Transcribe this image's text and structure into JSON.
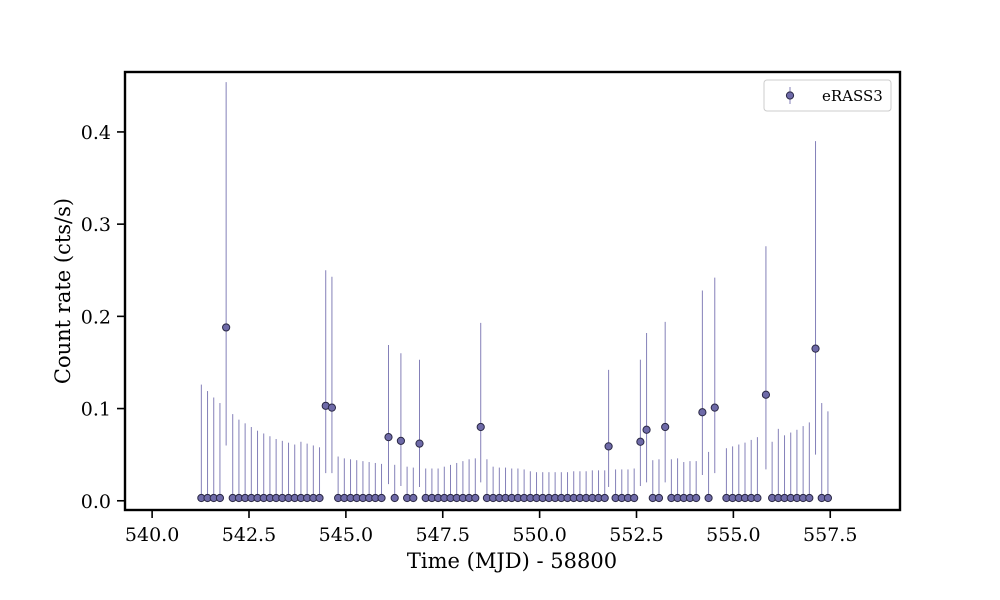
{
  "chart_data": {
    "type": "scatter",
    "title": "",
    "xlabel": "Time (MJD) - 58800",
    "ylabel": "Count rate (cts/s)",
    "xlim": [
      539.3,
      559.3
    ],
    "ylim": [
      -0.01,
      0.465
    ],
    "xticks": [
      540.0,
      542.5,
      545.0,
      547.5,
      550.0,
      552.5,
      555.0,
      557.5
    ],
    "xtick_labels": [
      "540.0",
      "542.5",
      "545.0",
      "547.5",
      "550.0",
      "552.5",
      "555.0",
      "557.5"
    ],
    "yticks": [
      0.0,
      0.1,
      0.2,
      0.3,
      0.4
    ],
    "ytick_labels": [
      "0.0",
      "0.1",
      "0.2",
      "0.3",
      "0.4"
    ],
    "grid": false,
    "legend": {
      "placement": "top-right",
      "entries": [
        "eRASS3"
      ]
    },
    "colors": {
      "marker_fill": "#6e6aa8",
      "marker_edge": "#2a2845",
      "errorbar": "#8480b8"
    },
    "series": [
      {
        "name": "eRASS3",
        "points": [
          {
            "x": 541.27,
            "y": 0.003,
            "yerr_up": 0.126
          },
          {
            "x": 541.43,
            "y": 0.003,
            "yerr_up": 0.119
          },
          {
            "x": 541.59,
            "y": 0.003,
            "yerr_up": 0.112
          },
          {
            "x": 541.75,
            "y": 0.003,
            "yerr_up": 0.106
          },
          {
            "x": 541.91,
            "y": 0.188,
            "yerr_up": 0.454,
            "yerr_low": 0.06
          },
          {
            "x": 542.08,
            "y": 0.003,
            "yerr_up": 0.094
          },
          {
            "x": 542.24,
            "y": 0.003,
            "yerr_up": 0.088
          },
          {
            "x": 542.4,
            "y": 0.003,
            "yerr_up": 0.084
          },
          {
            "x": 542.56,
            "y": 0.003,
            "yerr_up": 0.08
          },
          {
            "x": 542.72,
            "y": 0.003,
            "yerr_up": 0.076
          },
          {
            "x": 542.88,
            "y": 0.003,
            "yerr_up": 0.073
          },
          {
            "x": 543.04,
            "y": 0.003,
            "yerr_up": 0.07
          },
          {
            "x": 543.2,
            "y": 0.003,
            "yerr_up": 0.067
          },
          {
            "x": 543.36,
            "y": 0.003,
            "yerr_up": 0.065
          },
          {
            "x": 543.52,
            "y": 0.003,
            "yerr_up": 0.063
          },
          {
            "x": 543.68,
            "y": 0.003,
            "yerr_up": 0.061
          },
          {
            "x": 543.84,
            "y": 0.003,
            "yerr_up": 0.064
          },
          {
            "x": 544.0,
            "y": 0.003,
            "yerr_up": 0.062
          },
          {
            "x": 544.16,
            "y": 0.003,
            "yerr_up": 0.06
          },
          {
            "x": 544.32,
            "y": 0.003,
            "yerr_up": 0.058
          },
          {
            "x": 544.48,
            "y": 0.103,
            "yerr_up": 0.25,
            "yerr_low": 0.03
          },
          {
            "x": 544.64,
            "y": 0.101,
            "yerr_up": 0.243,
            "yerr_low": 0.03
          },
          {
            "x": 544.8,
            "y": 0.003,
            "yerr_up": 0.048
          },
          {
            "x": 544.96,
            "y": 0.003,
            "yerr_up": 0.046
          },
          {
            "x": 545.12,
            "y": 0.003,
            "yerr_up": 0.045
          },
          {
            "x": 545.28,
            "y": 0.003,
            "yerr_up": 0.044
          },
          {
            "x": 545.44,
            "y": 0.003,
            "yerr_up": 0.043
          },
          {
            "x": 545.6,
            "y": 0.003,
            "yerr_up": 0.042
          },
          {
            "x": 545.76,
            "y": 0.003,
            "yerr_up": 0.041
          },
          {
            "x": 545.92,
            "y": 0.003,
            "yerr_up": 0.04
          },
          {
            "x": 546.1,
            "y": 0.069,
            "yerr_up": 0.169,
            "yerr_low": 0.018
          },
          {
            "x": 546.26,
            "y": 0.003,
            "yerr_up": 0.039
          },
          {
            "x": 546.42,
            "y": 0.065,
            "yerr_up": 0.16,
            "yerr_low": 0.016
          },
          {
            "x": 546.58,
            "y": 0.003,
            "yerr_up": 0.037
          },
          {
            "x": 546.74,
            "y": 0.003,
            "yerr_up": 0.036
          },
          {
            "x": 546.9,
            "y": 0.062,
            "yerr_up": 0.153,
            "yerr_low": 0.015
          },
          {
            "x": 547.06,
            "y": 0.003,
            "yerr_up": 0.035
          },
          {
            "x": 547.22,
            "y": 0.003,
            "yerr_up": 0.035
          },
          {
            "x": 547.38,
            "y": 0.003,
            "yerr_up": 0.035
          },
          {
            "x": 547.54,
            "y": 0.003,
            "yerr_up": 0.037
          },
          {
            "x": 547.7,
            "y": 0.003,
            "yerr_up": 0.039
          },
          {
            "x": 547.86,
            "y": 0.003,
            "yerr_up": 0.041
          },
          {
            "x": 548.02,
            "y": 0.003,
            "yerr_up": 0.043
          },
          {
            "x": 548.18,
            "y": 0.003,
            "yerr_up": 0.045
          },
          {
            "x": 548.34,
            "y": 0.003,
            "yerr_up": 0.046
          },
          {
            "x": 548.48,
            "y": 0.08,
            "yerr_up": 0.193,
            "yerr_low": 0.02
          },
          {
            "x": 548.64,
            "y": 0.003,
            "yerr_up": 0.045
          },
          {
            "x": 548.8,
            "y": 0.003,
            "yerr_up": 0.037
          },
          {
            "x": 548.96,
            "y": 0.003,
            "yerr_up": 0.036
          },
          {
            "x": 549.12,
            "y": 0.003,
            "yerr_up": 0.036
          },
          {
            "x": 549.28,
            "y": 0.003,
            "yerr_up": 0.035
          },
          {
            "x": 549.44,
            "y": 0.003,
            "yerr_up": 0.035
          },
          {
            "x": 549.6,
            "y": 0.003,
            "yerr_up": 0.034
          },
          {
            "x": 549.76,
            "y": 0.003,
            "yerr_up": 0.032
          },
          {
            "x": 549.92,
            "y": 0.003,
            "yerr_up": 0.031
          },
          {
            "x": 550.08,
            "y": 0.003,
            "yerr_up": 0.031
          },
          {
            "x": 550.24,
            "y": 0.003,
            "yerr_up": 0.031
          },
          {
            "x": 550.4,
            "y": 0.003,
            "yerr_up": 0.031
          },
          {
            "x": 550.56,
            "y": 0.003,
            "yerr_up": 0.031
          },
          {
            "x": 550.72,
            "y": 0.003,
            "yerr_up": 0.031
          },
          {
            "x": 550.88,
            "y": 0.003,
            "yerr_up": 0.032
          },
          {
            "x": 551.04,
            "y": 0.003,
            "yerr_up": 0.032
          },
          {
            "x": 551.2,
            "y": 0.003,
            "yerr_up": 0.032
          },
          {
            "x": 551.36,
            "y": 0.003,
            "yerr_up": 0.033
          },
          {
            "x": 551.52,
            "y": 0.003,
            "yerr_up": 0.033
          },
          {
            "x": 551.68,
            "y": 0.003,
            "yerr_up": 0.033
          },
          {
            "x": 551.78,
            "y": 0.059,
            "yerr_up": 0.142,
            "yerr_low": 0.015
          },
          {
            "x": 551.96,
            "y": 0.003,
            "yerr_up": 0.034
          },
          {
            "x": 552.12,
            "y": 0.003,
            "yerr_up": 0.034
          },
          {
            "x": 552.28,
            "y": 0.003,
            "yerr_up": 0.034
          },
          {
            "x": 552.44,
            "y": 0.003,
            "yerr_up": 0.035
          },
          {
            "x": 552.6,
            "y": 0.064,
            "yerr_up": 0.153,
            "yerr_low": 0.016
          },
          {
            "x": 552.76,
            "y": 0.077,
            "yerr_up": 0.182,
            "yerr_low": 0.02
          },
          {
            "x": 552.92,
            "y": 0.003,
            "yerr_up": 0.044
          },
          {
            "x": 553.08,
            "y": 0.003,
            "yerr_up": 0.045
          },
          {
            "x": 553.24,
            "y": 0.08,
            "yerr_up": 0.194,
            "yerr_low": 0.02
          },
          {
            "x": 553.4,
            "y": 0.003,
            "yerr_up": 0.045
          },
          {
            "x": 553.56,
            "y": 0.003,
            "yerr_up": 0.046
          },
          {
            "x": 553.72,
            "y": 0.003,
            "yerr_up": 0.042
          },
          {
            "x": 553.88,
            "y": 0.003,
            "yerr_up": 0.043
          },
          {
            "x": 554.04,
            "y": 0.003,
            "yerr_up": 0.043
          },
          {
            "x": 554.2,
            "y": 0.096,
            "yerr_up": 0.228,
            "yerr_low": 0.028
          },
          {
            "x": 554.36,
            "y": 0.003,
            "yerr_up": 0.053
          },
          {
            "x": 554.52,
            "y": 0.101,
            "yerr_up": 0.242,
            "yerr_low": 0.03
          },
          {
            "x": 554.82,
            "y": 0.003,
            "yerr_up": 0.057
          },
          {
            "x": 554.98,
            "y": 0.003,
            "yerr_up": 0.059
          },
          {
            "x": 555.14,
            "y": 0.003,
            "yerr_up": 0.061
          },
          {
            "x": 555.3,
            "y": 0.003,
            "yerr_up": 0.063
          },
          {
            "x": 555.46,
            "y": 0.003,
            "yerr_up": 0.066
          },
          {
            "x": 555.62,
            "y": 0.003,
            "yerr_up": 0.069
          },
          {
            "x": 555.84,
            "y": 0.115,
            "yerr_up": 0.276,
            "yerr_low": 0.034
          },
          {
            "x": 556.0,
            "y": 0.003,
            "yerr_up": 0.064
          },
          {
            "x": 556.16,
            "y": 0.003,
            "yerr_up": 0.078
          },
          {
            "x": 556.32,
            "y": 0.003,
            "yerr_up": 0.071
          },
          {
            "x": 556.48,
            "y": 0.003,
            "yerr_up": 0.074
          },
          {
            "x": 556.64,
            "y": 0.003,
            "yerr_up": 0.077
          },
          {
            "x": 556.8,
            "y": 0.003,
            "yerr_up": 0.081
          },
          {
            "x": 556.96,
            "y": 0.003,
            "yerr_up": 0.085
          },
          {
            "x": 557.12,
            "y": 0.165,
            "yerr_up": 0.39,
            "yerr_low": 0.05
          },
          {
            "x": 557.28,
            "y": 0.003,
            "yerr_up": 0.106
          },
          {
            "x": 557.44,
            "y": 0.003,
            "yerr_up": 0.097
          }
        ]
      }
    ]
  }
}
